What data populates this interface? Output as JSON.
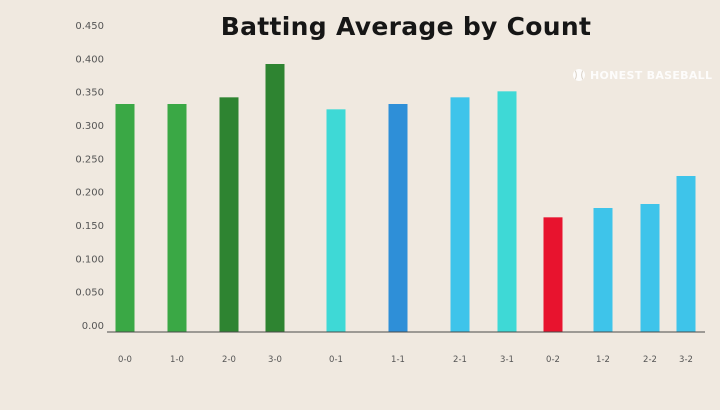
{
  "chart_data": {
    "type": "bar",
    "title": "Batting Average by Count",
    "xlabel": "",
    "ylabel": "",
    "ylim": [
      0,
      0.45
    ],
    "yticks": [
      "0.00",
      "0.050",
      "0.100",
      "0.150",
      "0.200",
      "0.250",
      "0.300",
      "0.350",
      "0.400",
      "0.450"
    ],
    "categories": [
      "0-0",
      "1-0",
      "2-0",
      "3-0",
      "0-1",
      "1-1",
      "2-1",
      "3-1",
      "0-2",
      "1-2",
      "2-2",
      "3-2"
    ],
    "values": [
      0.342,
      0.342,
      0.352,
      0.402,
      0.334,
      0.342,
      0.352,
      0.361,
      0.172,
      0.186,
      0.192,
      0.234
    ],
    "colors": [
      "#3aa845",
      "#3aa845",
      "#2e8431",
      "#2e8431",
      "#3ed9d6",
      "#2e8fd8",
      "#3ec4ea",
      "#3ed9d6",
      "#e8132e",
      "#3ec4ea",
      "#3ec4ea",
      "#3ec4ea"
    ],
    "grid": false,
    "legend": "none"
  },
  "watermark": {
    "text": "HONEST BASEBALL",
    "icon": "baseball-icon"
  }
}
